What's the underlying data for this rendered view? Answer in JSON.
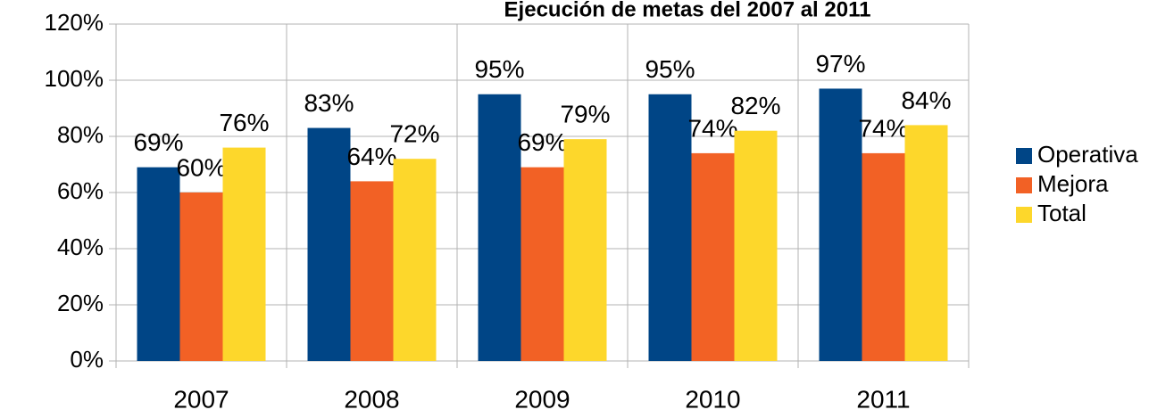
{
  "chart_data": {
    "type": "bar",
    "title": "Ejecución de metas del 2007 al 2011",
    "categories": [
      "2007",
      "2008",
      "2009",
      "2010",
      "2011"
    ],
    "series": [
      {
        "name": "Operativa",
        "color": "#004586",
        "values": [
          69,
          83,
          95,
          95,
          97
        ],
        "value_labels": [
          "69%",
          "83%",
          "95%",
          "95%",
          "97%"
        ]
      },
      {
        "name": "Mejora",
        "color": "#f26125",
        "values": [
          60,
          64,
          69,
          74,
          74
        ],
        "value_labels": [
          "60%",
          "64%",
          "69%",
          "74%",
          "74%"
        ]
      },
      {
        "name": "Total",
        "color": "#fdd72b",
        "values": [
          76,
          72,
          79,
          82,
          84
        ],
        "value_labels": [
          "76%",
          "72%",
          "79%",
          "82%",
          "84%"
        ]
      }
    ],
    "ylim": [
      0,
      120
    ],
    "yticks": [
      {
        "value": 0,
        "label": "0%"
      },
      {
        "value": 20,
        "label": "20%"
      },
      {
        "value": 40,
        "label": "40%"
      },
      {
        "value": 60,
        "label": "60%"
      },
      {
        "value": 80,
        "label": "80%"
      },
      {
        "value": 100,
        "label": "100%"
      },
      {
        "value": 120,
        "label": "120%"
      }
    ],
    "grid": true,
    "legend": "right"
  }
}
